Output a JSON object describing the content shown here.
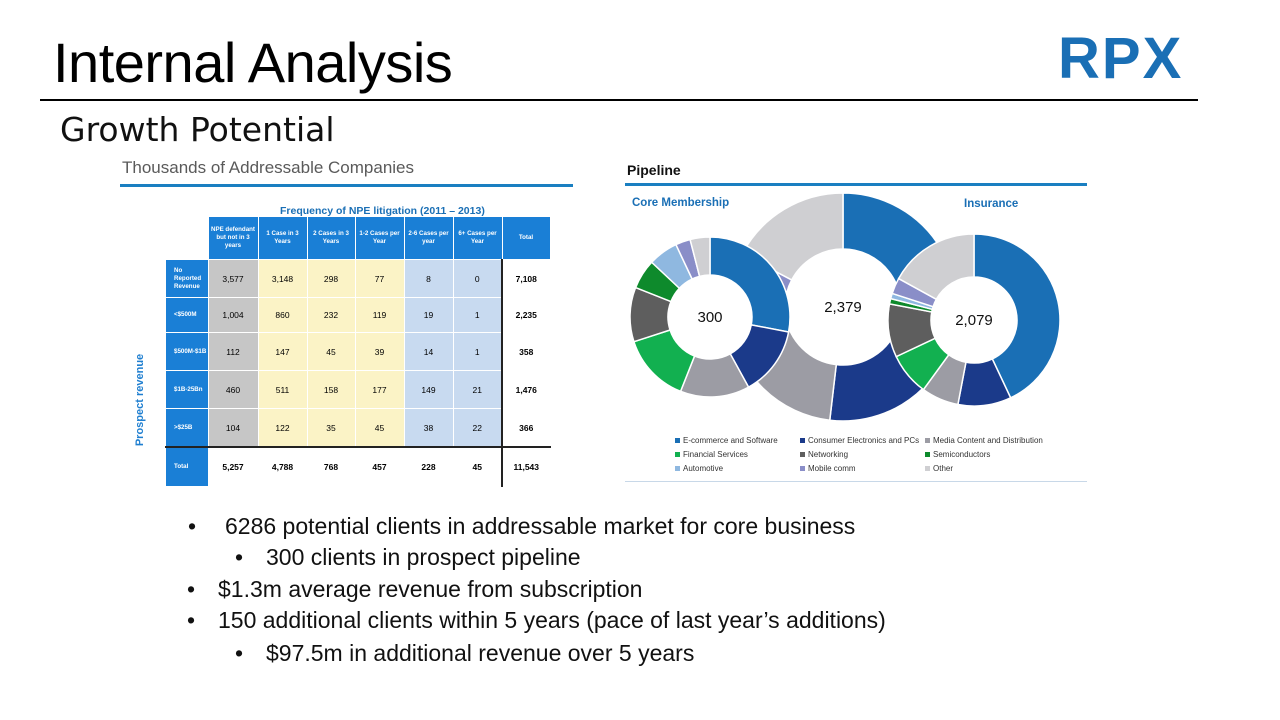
{
  "slide": {
    "title": "Internal Analysis",
    "subtitle": "Growth Potential",
    "logo_text": "RPX"
  },
  "left_panel": {
    "heading": "Thousands of Addressable Companies",
    "freq_title": "Frequency of NPE litigation (2011 – 2013)",
    "axis_label": "Prospect revenue",
    "columns": [
      "NPE defendant but not in 3 years",
      "1 Case in 3 Years",
      "2 Cases in 3 Years",
      "1-2 Cases per Year",
      "2-6 Cases per year",
      "6+ Cases per Year",
      "Total"
    ],
    "row_labels": [
      "No Reported Revenue",
      "<$500M",
      "$500M-$1B",
      "$1B-25Bn",
      ">$25B",
      "Total"
    ]
  },
  "right_panel": {
    "heading": "Pipeline",
    "left_label": "Core Membership",
    "right_label": "Insurance",
    "donut_labels": [
      "300",
      "2,379",
      "2,079"
    ],
    "legend": [
      {
        "label": "E-commerce and Software",
        "color": "#1a6fb5"
      },
      {
        "label": "Consumer Electronics and PCs",
        "color": "#1b3a8a"
      },
      {
        "label": "Media Content and Distribution",
        "color": "#9c9ca4"
      },
      {
        "label": "Financial Services",
        "color": "#12b050"
      },
      {
        "label": "Networking",
        "color": "#5e5e5e"
      },
      {
        "label": "Semiconductors",
        "color": "#0e8a2c"
      },
      {
        "label": "Automotive",
        "color": "#8fb8e0"
      },
      {
        "label": "Mobile comm",
        "color": "#8a8ec8"
      },
      {
        "label": "Other",
        "color": "#cfcfd2"
      }
    ]
  },
  "bullets": [
    "6286 potential clients in addressable market for core business",
    "300 clients in prospect pipeline",
    "$1.3m average revenue from subscription",
    "150 additional clients within 5 years (pace of last year’s additions)",
    "$97.5m in additional revenue over 5 years"
  ],
  "chart_data": [
    {
      "type": "table",
      "title": "Thousands of Addressable Companies",
      "subtitle": "Frequency of NPE litigation (2011 – 2013)",
      "ylabel": "Prospect revenue",
      "columns": [
        "NPE defendant but not in 3 years",
        "1 Case in 3 Years",
        "2 Cases in 3 Years",
        "1-2 Cases per Year",
        "2-6 Cases per year",
        "6+ Cases per Year",
        "Total"
      ],
      "rows": [
        {
          "label": "No Reported Revenue",
          "values": [
            "3,577",
            "3,148",
            "298",
            "77",
            "8",
            "0",
            "7,108"
          ]
        },
        {
          "label": "<$500M",
          "values": [
            "1,004",
            "860",
            "232",
            "119",
            "19",
            "1",
            "2,235"
          ]
        },
        {
          "label": "$500M-$1B",
          "values": [
            "112",
            "147",
            "45",
            "39",
            "14",
            "1",
            "358"
          ]
        },
        {
          "label": "$1B-25Bn",
          "values": [
            "460",
            "511",
            "158",
            "177",
            "149",
            "21",
            "1,476"
          ]
        },
        {
          "label": ">$25B",
          "values": [
            "104",
            "122",
            "35",
            "45",
            "38",
            "22",
            "366"
          ]
        },
        {
          "label": "Total",
          "values": [
            "5,257",
            "4,788",
            "768",
            "457",
            "228",
            "45",
            "11,543"
          ]
        }
      ]
    },
    {
      "type": "pie",
      "title": "Pipeline",
      "categories": [
        "E-commerce and Software",
        "Consumer Electronics and PCs",
        "Media Content and Distribution",
        "Financial Services",
        "Networking",
        "Semiconductors",
        "Automotive",
        "Mobile comm",
        "Other"
      ],
      "series": [
        {
          "name": "Core Membership",
          "center_label": "300",
          "values": [
            28,
            14,
            14,
            14,
            11,
            6,
            6,
            3,
            4
          ]
        },
        {
          "name": "",
          "center_label": "2,379",
          "values": [
            25,
            17,
            17,
            2,
            1,
            1,
            1,
            3,
            14
          ]
        },
        {
          "name": "Insurance",
          "center_label": "2,079",
          "values": [
            43,
            10,
            7,
            8,
            10,
            1,
            1,
            3,
            17
          ]
        }
      ]
    }
  ]
}
